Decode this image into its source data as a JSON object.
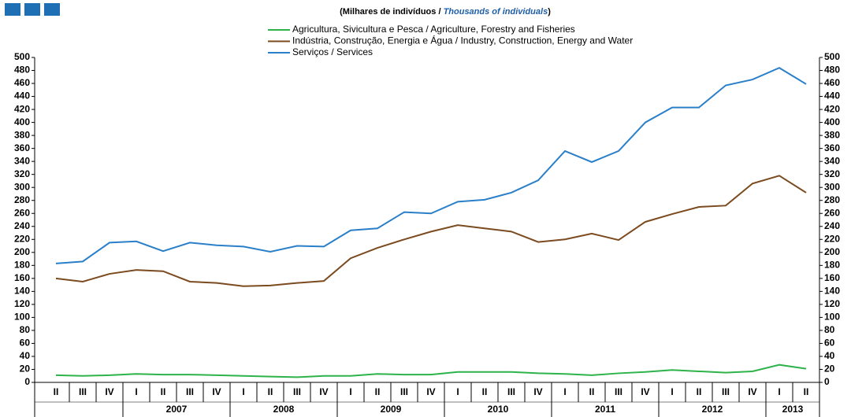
{
  "chart_data": {
    "type": "line",
    "subtitle": {
      "prefix": "(Milhares  de indivíduos  /",
      "emphasis": "Thousands of individuals",
      "suffix": ")"
    },
    "categories": [
      "II",
      "III",
      "IV",
      "I",
      "II",
      "III",
      "IV",
      "I",
      "II",
      "III",
      "IV",
      "I",
      "II",
      "III",
      "IV",
      "I",
      "II",
      "III",
      "IV",
      "I",
      "II",
      "III",
      "IV",
      "I",
      "II",
      "III",
      "IV",
      "I",
      "II"
    ],
    "year_labels": [
      "2007",
      "2008",
      "2009",
      "2010",
      "2011",
      "2012",
      "2013"
    ],
    "series": [
      {
        "name": "Agricultura, Sivicultura e Pesca / Agriculture, Forestry and Fisheries",
        "color": "#2db34a",
        "values": [
          11,
          10,
          11,
          13,
          12,
          12,
          11,
          10,
          9,
          8,
          10,
          10,
          13,
          12,
          12,
          16,
          16,
          16,
          14,
          13,
          11,
          14,
          16,
          19,
          17,
          15,
          17,
          27,
          21
        ]
      },
      {
        "name": "Indústria, Construção, Energia e Água / Industry, Construction, Energy and Water",
        "color": "#7b4a1e",
        "values": [
          160,
          155,
          167,
          173,
          171,
          155,
          153,
          148,
          149,
          153,
          156,
          191,
          207,
          220,
          232,
          242,
          237,
          232,
          216,
          220,
          229,
          219,
          247,
          259,
          270,
          272,
          306,
          318,
          292
        ]
      },
      {
        "name": "Serviços / Services",
        "color": "#2a7fc9",
        "values": [
          183,
          186,
          215,
          217,
          202,
          215,
          211,
          209,
          201,
          210,
          209,
          234,
          237,
          262,
          260,
          278,
          281,
          292,
          311,
          356,
          339,
          356,
          400,
          423,
          423,
          457,
          466,
          484,
          459
        ]
      }
    ],
    "ylim": [
      0,
      500
    ],
    "yticks": [
      0,
      20,
      40,
      60,
      80,
      100,
      120,
      140,
      160,
      180,
      200,
      220,
      240,
      260,
      280,
      300,
      320,
      340,
      360,
      380,
      400,
      420,
      440,
      460,
      480,
      500
    ],
    "grid": false
  }
}
